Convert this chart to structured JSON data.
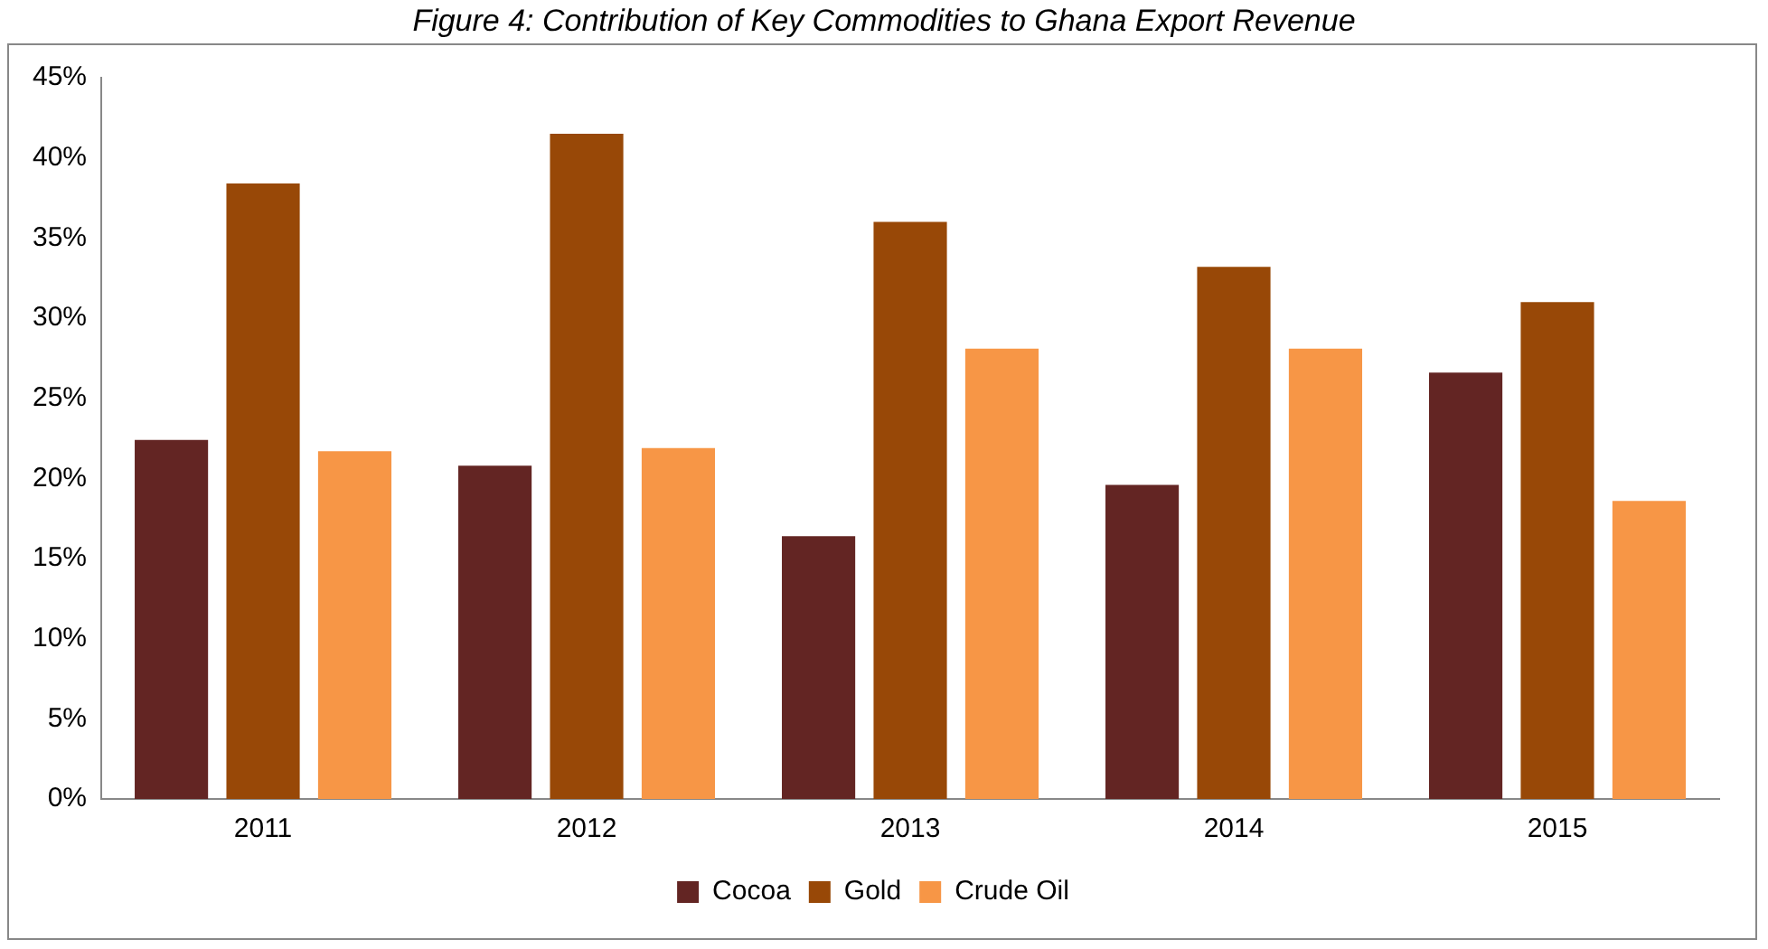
{
  "chart_data": {
    "type": "bar",
    "title": "Figure 4: Contribution of Key Commodities to Ghana Export Revenue",
    "categories": [
      "2011",
      "2012",
      "2013",
      "2014",
      "2015"
    ],
    "series": [
      {
        "name": "Cocoa",
        "color": "#632523",
        "values": [
          22.4,
          20.8,
          16.4,
          19.6,
          26.6
        ]
      },
      {
        "name": "Gold",
        "color": "#984807",
        "values": [
          38.4,
          41.5,
          36.0,
          33.2,
          31.0
        ]
      },
      {
        "name": "Crude Oil",
        "color": "#f79646",
        "values": [
          21.7,
          21.9,
          28.1,
          28.1,
          18.6
        ]
      }
    ],
    "ylim": [
      0,
      45
    ],
    "yticks": [
      {
        "value": 0,
        "label": "0%"
      },
      {
        "value": 5,
        "label": "5%"
      },
      {
        "value": 10,
        "label": "10%"
      },
      {
        "value": 15,
        "label": "15%"
      },
      {
        "value": 20,
        "label": "20%"
      },
      {
        "value": 25,
        "label": "25%"
      },
      {
        "value": 30,
        "label": "30%"
      },
      {
        "value": 35,
        "label": "35%"
      },
      {
        "value": 40,
        "label": "40%"
      },
      {
        "value": 45,
        "label": "45%"
      }
    ],
    "grid": false,
    "legend": "bottom"
  }
}
